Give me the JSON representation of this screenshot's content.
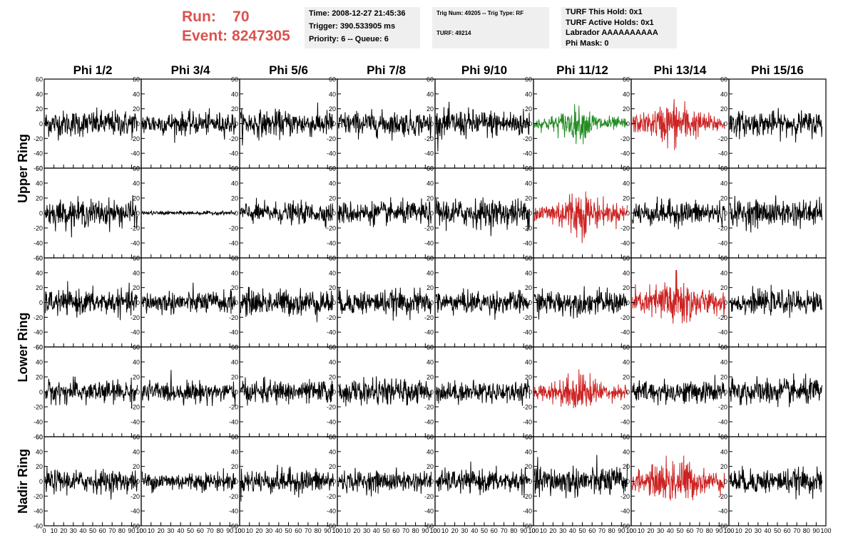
{
  "header": {
    "run_label": "Run:",
    "run_value": "70",
    "event_label": "Event:",
    "event_value": "8247305"
  },
  "info_boxes": {
    "time": "Time: 2008-12-27 21:45:36",
    "trigger": "Trigger: 390.533905 ms",
    "priority": "Priority: 6 -- Queue: 6",
    "trig_num": "Trig Num: 49205 -- Trig Type: RF",
    "turf": "TURF: 49214",
    "turf_this_hold": "TURF This Hold: 0x1",
    "turf_active_holds": "TURF Active Holds: 0x1",
    "labrador": "Labrador AAAAAAAAAA",
    "phi_mask": "Phi Mask: 0"
  },
  "colors": {
    "normal": "#000000",
    "triggered": "#cc2222",
    "highlight": "#228b22",
    "header": "#d9534f",
    "box_bg": "#efefef"
  },
  "chart_data": {
    "type": "line",
    "columns": [
      "Phi 1/2",
      "Phi 3/4",
      "Phi 5/6",
      "Phi 7/8",
      "Phi 9/10",
      "Phi 11/12",
      "Phi 13/14",
      "Phi 15/16"
    ],
    "rows": [
      "Upper Ring",
      "Upper Ring",
      "Lower Ring",
      "Lower Ring",
      "Nadir Ring"
    ],
    "row_labels": [
      "Upper Ring",
      "Lower Ring",
      "Nadir Ring"
    ],
    "xlim": [
      0,
      100
    ],
    "ylim": [
      -60,
      60
    ],
    "x_ticks": [
      0,
      10,
      20,
      30,
      40,
      50,
      60,
      70,
      80,
      90,
      100
    ],
    "x_tick_labels": [
      "0",
      "10",
      "20",
      "30",
      "40",
      "50",
      "60",
      "70",
      "80",
      "90",
      "100"
    ],
    "y_ticks": [
      -60,
      -40,
      -20,
      0,
      20,
      40,
      60
    ],
    "y_tick_labels": [
      "-60",
      "-40",
      "-20",
      "0",
      "20",
      "40",
      "60"
    ],
    "waveform_amplitude": [
      [
        14,
        12,
        14,
        13,
        15,
        15,
        22,
        13
      ],
      [
        14,
        2,
        11,
        12,
        15,
        22,
        13,
        14
      ],
      [
        13,
        12,
        14,
        13,
        12,
        13,
        26,
        12
      ],
      [
        12,
        11,
        12,
        13,
        11,
        18,
        12,
        14
      ],
      [
        12,
        10,
        13,
        11,
        12,
        16,
        24,
        13
      ]
    ],
    "waveform_color": [
      [
        "normal",
        "normal",
        "normal",
        "normal",
        "normal",
        "highlight",
        "triggered",
        "normal"
      ],
      [
        "normal",
        "normal",
        "normal",
        "normal",
        "normal",
        "triggered",
        "normal",
        "normal"
      ],
      [
        "normal",
        "normal",
        "normal",
        "normal",
        "normal",
        "normal",
        "triggered",
        "normal"
      ],
      [
        "normal",
        "normal",
        "normal",
        "normal",
        "normal",
        "triggered",
        "normal",
        "normal"
      ],
      [
        "normal",
        "normal",
        "normal",
        "normal",
        "normal",
        "normal",
        "triggered",
        "normal"
      ]
    ]
  }
}
